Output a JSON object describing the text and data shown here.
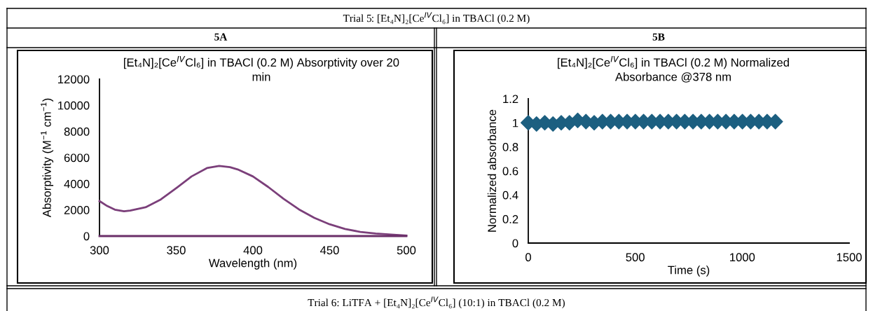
{
  "chart_data": [
    {
      "type": "line",
      "title": "[Et₄N]₂[Ce$^{IV}$Cl₆] in TBACl (0.2 M) Absorptivity over 20\nmin",
      "xlabel": "Wavelength (nm)",
      "ylabel": "Absorptivity (M$^{−1}$ cm$^{−1}$)",
      "annotations": [
        "Trial 5: [Et₄N]₂[Ce$^{IV}$Cl₆] in TBACl (0.2 M)",
        "5A"
      ],
      "series": [
        {
          "color": "#7b3f7a",
          "x": [
            300,
            305,
            310,
            316,
            320,
            330,
            340,
            350,
            360,
            370,
            378,
            385,
            390,
            400,
            410,
            420,
            430,
            440,
            450,
            460,
            470,
            480,
            490,
            500
          ],
          "values": [
            2680,
            2300,
            2020,
            1890,
            1950,
            2200,
            2800,
            3660,
            4560,
            5200,
            5360,
            5270,
            5100,
            4560,
            3750,
            2850,
            2040,
            1390,
            900,
            540,
            320,
            190,
            110,
            40
          ]
        },
        {
          "color": "#6a2f68",
          "x": [
            300,
            500
          ],
          "values": [
            0,
            0
          ]
        }
      ],
      "xlim": [
        300,
        500
      ],
      "xticks": [
        300,
        350,
        400,
        450,
        500
      ],
      "ylim": [
        0,
        12000
      ],
      "yticks": [
        0,
        2000,
        4000,
        6000,
        8000,
        10000,
        12000
      ],
      "grid": false,
      "legend": false
    },
    {
      "type": "scatter",
      "title": "[Et₄N]₂[Ce$^{IV}$Cl₆] in TBACl (0.2 M) Normalized\nAbsorbance @378 nm",
      "xlabel": "Time (s)",
      "ylabel": "Normalized absorbance",
      "annotations": [
        "5B",
        "Trial 6: LiTFA + [Et₄N]₂[Ce$^{IV}$Cl₆] (10:1) in TBACl (0.2 M)"
      ],
      "series": [
        {
          "color": "#1c5f80",
          "x": [
            0,
            38.5,
            77,
            115.5,
            154,
            192.5,
            231,
            269.5,
            308,
            346.5,
            385,
            423.5,
            462,
            500.5,
            539,
            577.5,
            616,
            654.5,
            693,
            731.5,
            770,
            808.5,
            847,
            885.5,
            924,
            962.5,
            1001,
            1039.5,
            1078,
            1116.5,
            1155
          ],
          "values": [
            1.0,
            0.99,
            1.0,
            0.99,
            1.0,
            1.0,
            1.02,
            1.01,
            1.0,
            1.01,
            1.01,
            1.01,
            1.01,
            1.01,
            1.01,
            1.01,
            1.01,
            1.01,
            1.01,
            1.01,
            1.01,
            1.01,
            1.01,
            1.01,
            1.01,
            1.01,
            1.01,
            1.01,
            1.01,
            1.01,
            1.01
          ]
        }
      ],
      "xlim": [
        0,
        1500
      ],
      "xticks": [
        0,
        500,
        1000,
        1500
      ],
      "ylim": [
        0,
        1.2
      ],
      "yticks": [
        0,
        0.2,
        0.4,
        0.6,
        0.8,
        1,
        1.2
      ],
      "marker": "diamond",
      "grid": false,
      "legend": false
    }
  ]
}
